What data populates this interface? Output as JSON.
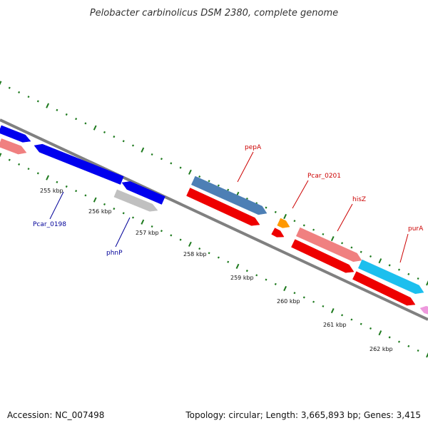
{
  "title": "Pelobacter carbinolicus DSM 2380, complete genome",
  "footer": {
    "accession": "Accession: NC_007498",
    "summary": "Topology: circular; Length: 3,665,893 bp; Genes: 3,415"
  },
  "colors": {
    "backbone": "#808080",
    "tick": "#1e7a1e",
    "forward_label": "#cc0000",
    "reverse_label": "#000099"
  },
  "ruler": [
    "255 kbp",
    "256 kbp",
    "257 kbp",
    "258 kbp",
    "259 kbp",
    "260 kbp",
    "261 kbp",
    "262 kbp"
  ],
  "gene_labels": [
    {
      "text": "pepA",
      "strand": "forward"
    },
    {
      "text": "Pcar_0201",
      "strand": "forward"
    },
    {
      "text": "hisZ",
      "strand": "forward"
    },
    {
      "text": "purA",
      "strand": "forward"
    },
    {
      "text": "Pcar_0198",
      "strand": "reverse"
    },
    {
      "text": "phnP",
      "strand": "reverse"
    }
  ],
  "features": [
    {
      "name": "feature-reverse-blue-1",
      "color": "#0000ee"
    },
    {
      "name": "feature-reverse-pink-1",
      "color": "#f08080"
    },
    {
      "name": "feature-reverse-blue-2",
      "color": "#0000ee"
    },
    {
      "name": "feature-reverse-blue-3",
      "color": "#0000ee"
    },
    {
      "name": "feature-reverse-grey",
      "color": "#c0c0c0"
    },
    {
      "name": "feature-pepA-steelblue",
      "color": "#4d7fb5"
    },
    {
      "name": "feature-pepA-red",
      "color": "#ee0000"
    },
    {
      "name": "feature-pcar0201-orange",
      "color": "#ff9900"
    },
    {
      "name": "feature-pcar0201-red",
      "color": "#ee0000"
    },
    {
      "name": "feature-hisZ-pink",
      "color": "#f08080"
    },
    {
      "name": "feature-hisZ-red",
      "color": "#ee0000"
    },
    {
      "name": "feature-purA-cyan",
      "color": "#1cbfee"
    },
    {
      "name": "feature-purA-red",
      "color": "#ee0000"
    },
    {
      "name": "feature-edge-pink",
      "color": "#ee99dd"
    }
  ]
}
